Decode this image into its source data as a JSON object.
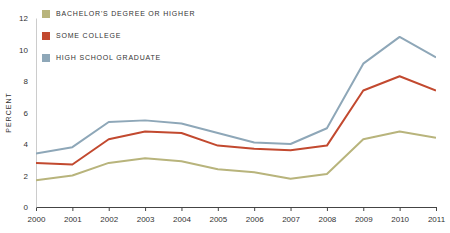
{
  "chart_data": {
    "type": "line",
    "y_label": "PERCENT",
    "x": [
      2000,
      2001,
      2002,
      2003,
      2004,
      2005,
      2006,
      2007,
      2008,
      2009,
      2010,
      2011
    ],
    "xlim": [
      2000,
      2011
    ],
    "xticks": [
      2000,
      2001,
      2002,
      2003,
      2004,
      2005,
      2006,
      2007,
      2008,
      2009,
      2010,
      2011
    ],
    "ylim": [
      0,
      12
    ],
    "yticks": [
      0,
      2,
      4,
      6,
      8,
      10,
      12
    ],
    "grid": false,
    "legend": "upper left",
    "series": [
      {
        "name": "BACHELOR'S DEGREE OR HIGHER",
        "color": "#b8b47c",
        "values": [
          1.7,
          2.0,
          2.8,
          3.1,
          2.9,
          2.4,
          2.2,
          1.8,
          2.1,
          4.3,
          4.8,
          4.4
        ]
      },
      {
        "name": "SOME COLLEGE",
        "color": "#c2492f",
        "values": [
          2.8,
          2.7,
          4.3,
          4.8,
          4.7,
          3.9,
          3.7,
          3.6,
          3.9,
          7.4,
          8.3,
          7.4
        ]
      },
      {
        "name": "HIGH SCHOOL GRADUATE",
        "color": "#8ea7b8",
        "values": [
          3.4,
          3.8,
          5.4,
          5.5,
          5.3,
          4.7,
          4.1,
          4.0,
          5.0,
          9.1,
          10.8,
          9.5
        ]
      }
    ]
  }
}
